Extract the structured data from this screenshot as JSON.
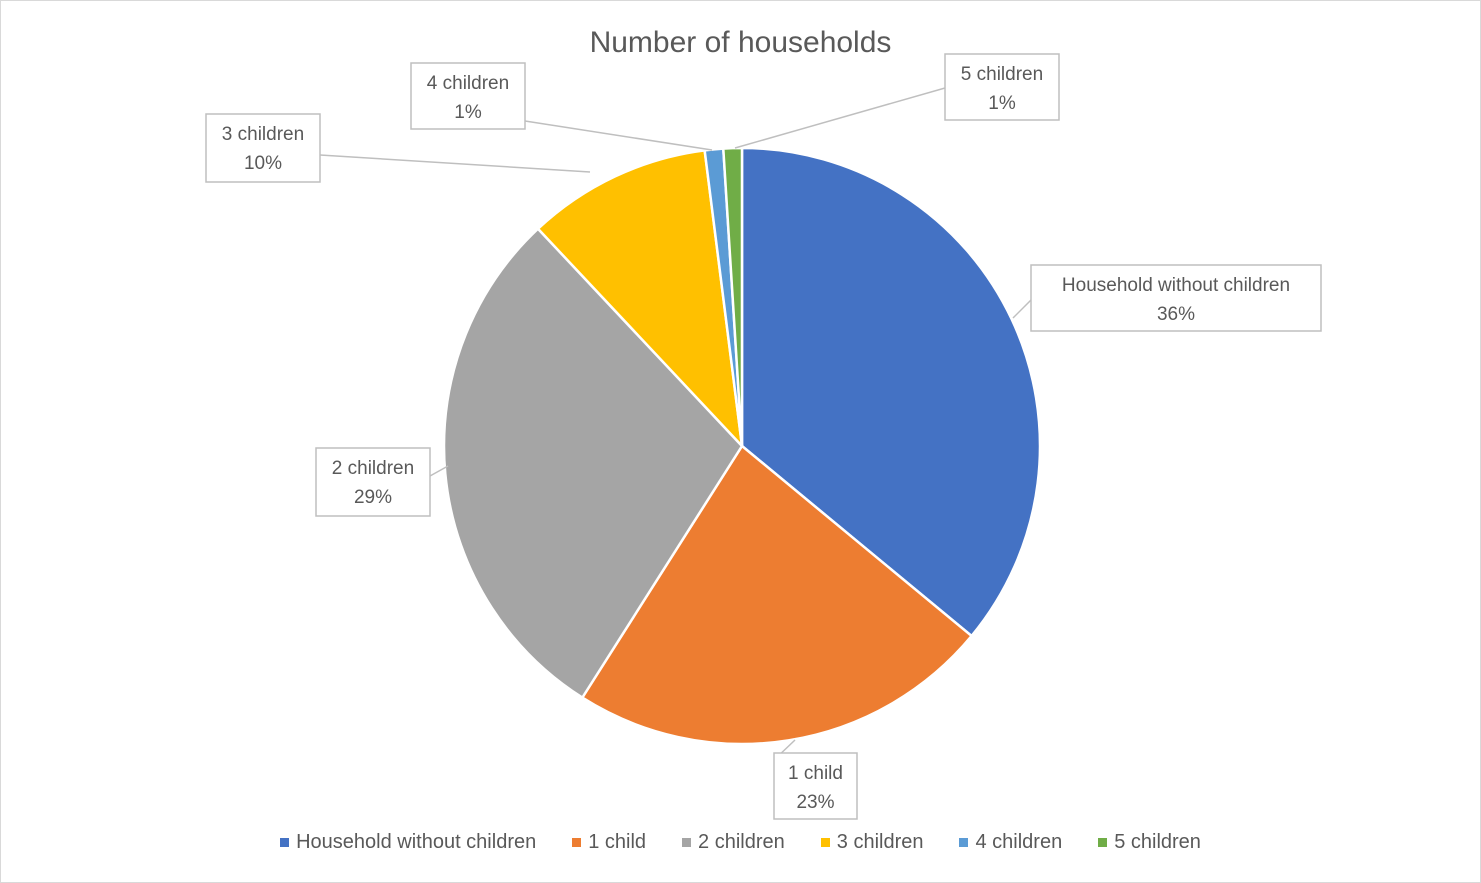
{
  "chart_data": {
    "type": "pie",
    "title": "Number of households",
    "categories": [
      "Household without children",
      "1 child",
      "2 children",
      "3 children",
      "4 children",
      "5 children"
    ],
    "values": [
      36,
      23,
      29,
      10,
      1,
      1
    ],
    "value_labels": [
      "36%",
      "23%",
      "29%",
      "10%",
      "1%",
      "1%"
    ],
    "colors": [
      "#4472C4",
      "#ED7D31",
      "#A5A5A5",
      "#FFC000",
      "#5B9BD5",
      "#70AD47"
    ],
    "legend_position": "bottom",
    "start_angle_deg": 0,
    "direction": "clockwise"
  }
}
